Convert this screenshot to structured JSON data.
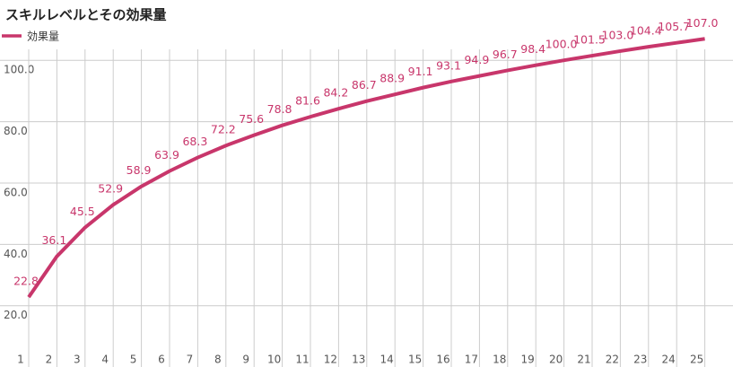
{
  "chart_data": {
    "type": "line",
    "title": "スキルレベルとその効果量",
    "categories": [
      "1",
      "2",
      "3",
      "4",
      "5",
      "6",
      "7",
      "8",
      "9",
      "10",
      "11",
      "12",
      "13",
      "14",
      "15",
      "16",
      "17",
      "18",
      "19",
      "20",
      "21",
      "22",
      "23",
      "24",
      "25"
    ],
    "series": [
      {
        "name": "効果量",
        "color": "#c8366b",
        "values": [
          22.8,
          36.1,
          45.5,
          52.9,
          58.9,
          63.9,
          68.3,
          72.2,
          75.6,
          78.8,
          81.6,
          84.2,
          86.7,
          88.9,
          91.1,
          93.1,
          94.9,
          96.7,
          98.4,
          100.0,
          101.5,
          103.0,
          104.4,
          105.7,
          107.0
        ],
        "value_labels": [
          "22.8",
          "36.1",
          "45.5",
          "52.9",
          "58.9",
          "63.9",
          "68.3",
          "72.2",
          "75.6",
          "78.8",
          "81.6",
          "84.2",
          "86.7",
          "88.9",
          "91.1",
          "93.1",
          "94.9",
          "96.7",
          "98.4",
          "100.0",
          "101.5",
          "103.0",
          "104.4",
          "105.7",
          "107.0"
        ]
      }
    ],
    "ylim": [
      5,
      110
    ],
    "yticks": [
      {
        "value": 20,
        "label": "20.0"
      },
      {
        "value": 40,
        "label": "40.0"
      },
      {
        "value": 60,
        "label": "60.0"
      },
      {
        "value": 80,
        "label": "80.0"
      },
      {
        "value": 100,
        "label": "100.0"
      }
    ],
    "grid": true,
    "legend": "top-left"
  }
}
